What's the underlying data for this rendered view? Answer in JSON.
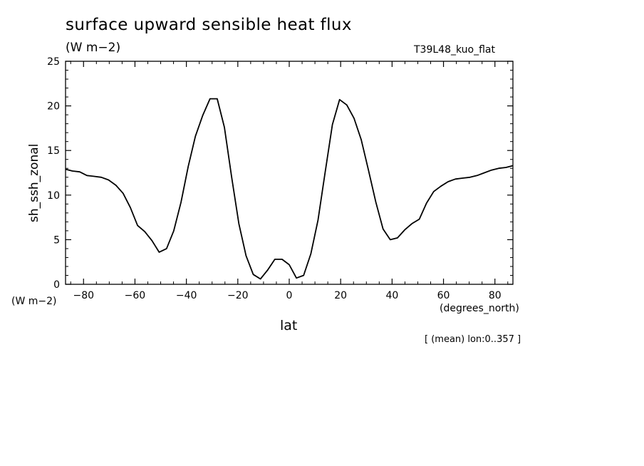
{
  "chart_data": {
    "type": "line",
    "title": "surface upward sensible heat flux",
    "units": "(W m−2)",
    "experiment": "T39L48_kuo_flat",
    "ylabel": "sh_ssh_zonal",
    "yunit_label": "(W m−2)",
    "xlabel": "lat",
    "xunit_label": "(degrees_north)",
    "subset_note": "[ (mean) lon:0..357 ]",
    "xlim": [
      -87,
      87
    ],
    "ylim": [
      0,
      25
    ],
    "xticks": [
      -80,
      -60,
      -40,
      -20,
      0,
      20,
      40,
      60,
      80
    ],
    "yticks": [
      0,
      5,
      10,
      15,
      20,
      25
    ],
    "series": [
      {
        "x": [
          -87.2,
          -84.3,
          -81.5,
          -78.7,
          -75.9,
          -73.1,
          -70.3,
          -67.4,
          -64.6,
          -61.8,
          -59.0,
          -56.2,
          -53.4,
          -50.6,
          -47.7,
          -44.9,
          -42.1,
          -39.3,
          -36.5,
          -33.7,
          -30.8,
          -28.0,
          -25.2,
          -22.4,
          -19.6,
          -16.8,
          -14.0,
          -11.2,
          -8.4,
          -5.6,
          -2.8,
          0.0,
          2.8,
          5.6,
          8.4,
          11.2,
          14.0,
          16.8,
          19.6,
          22.4,
          25.2,
          28.0,
          30.8,
          33.7,
          36.5,
          39.3,
          42.1,
          44.9,
          47.7,
          50.6,
          53.4,
          56.2,
          59.0,
          61.8,
          64.6,
          67.4,
          70.3,
          73.1,
          75.9,
          78.7,
          81.5,
          84.3,
          87.2
        ],
        "y": [
          12.9,
          12.7,
          12.6,
          12.2,
          12.1,
          12.0,
          11.7,
          11.1,
          10.2,
          8.6,
          6.6,
          5.9,
          4.9,
          3.6,
          4.0,
          6.0,
          9.2,
          13.2,
          16.6,
          18.9,
          20.8,
          20.8,
          17.6,
          12.0,
          6.8,
          3.2,
          1.1,
          0.6,
          1.6,
          2.8,
          2.8,
          2.2,
          0.7,
          1.0,
          3.4,
          7.2,
          12.6,
          17.9,
          20.7,
          20.1,
          18.6,
          16.2,
          12.8,
          9.2,
          6.2,
          5.0,
          5.2,
          6.1,
          6.8,
          7.3,
          9.1,
          10.4,
          11.0,
          11.5,
          11.8,
          11.9,
          12.0,
          12.2,
          12.5,
          12.8,
          13.0,
          13.1,
          13.3
        ]
      }
    ],
    "grid": false
  }
}
